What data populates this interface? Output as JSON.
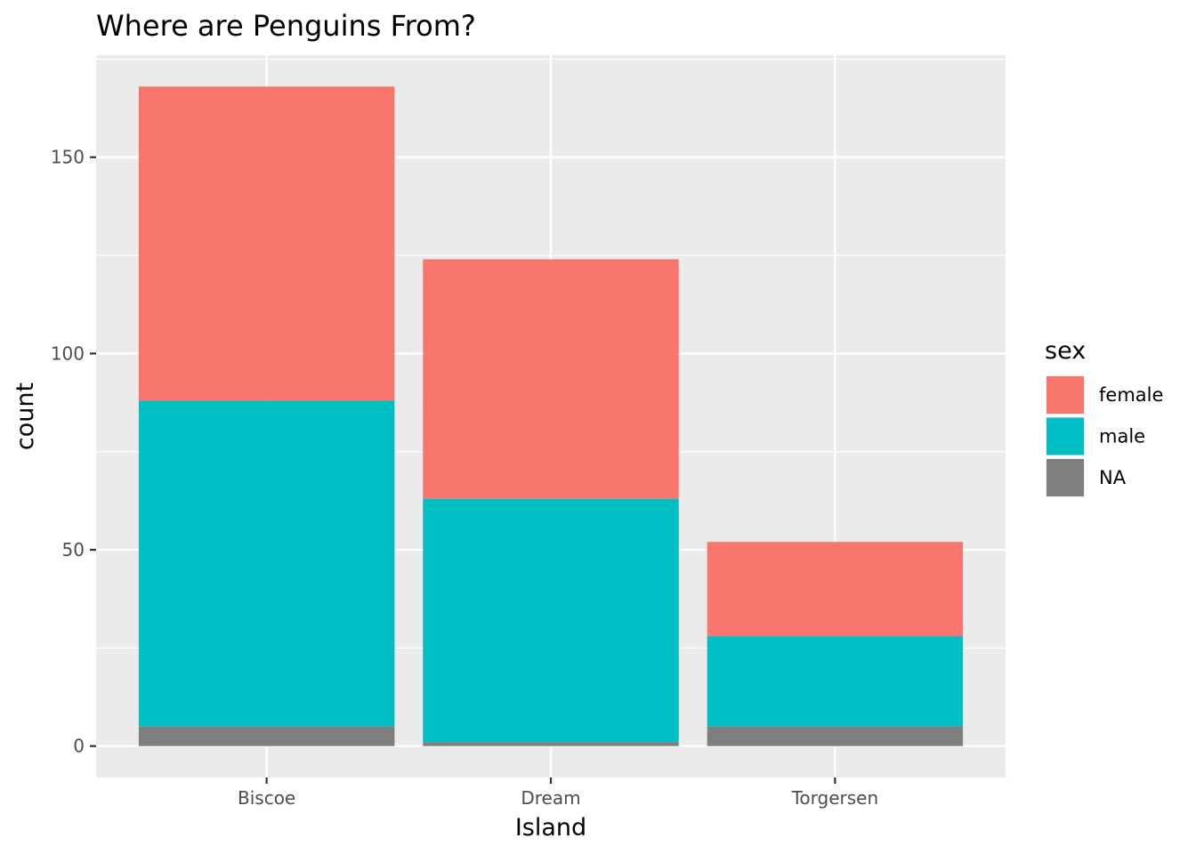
{
  "chart_data": {
    "type": "bar",
    "stacked": true,
    "title": "Where are Penguins From?",
    "xlabel": "Island",
    "ylabel": "count",
    "categories": [
      "Biscoe",
      "Dream",
      "Torgersen"
    ],
    "series": [
      {
        "name": "female",
        "color": "#F8766D",
        "values": [
          80,
          61,
          24
        ]
      },
      {
        "name": "male",
        "color": "#00BFC4",
        "values": [
          83,
          62,
          23
        ]
      },
      {
        "name": "NA",
        "color": "#7F7F7F",
        "values": [
          5,
          1,
          5
        ]
      }
    ],
    "ylim": [
      -8,
      176
    ],
    "yticks": [
      0,
      50,
      100,
      150
    ],
    "ytick_labels": [
      "0",
      "50",
      "100",
      "150"
    ],
    "grid": true,
    "legend": {
      "title": "sex",
      "placement": "right"
    },
    "panel_background": "#EBEBEB",
    "grid_color": "#FFFFFF"
  }
}
